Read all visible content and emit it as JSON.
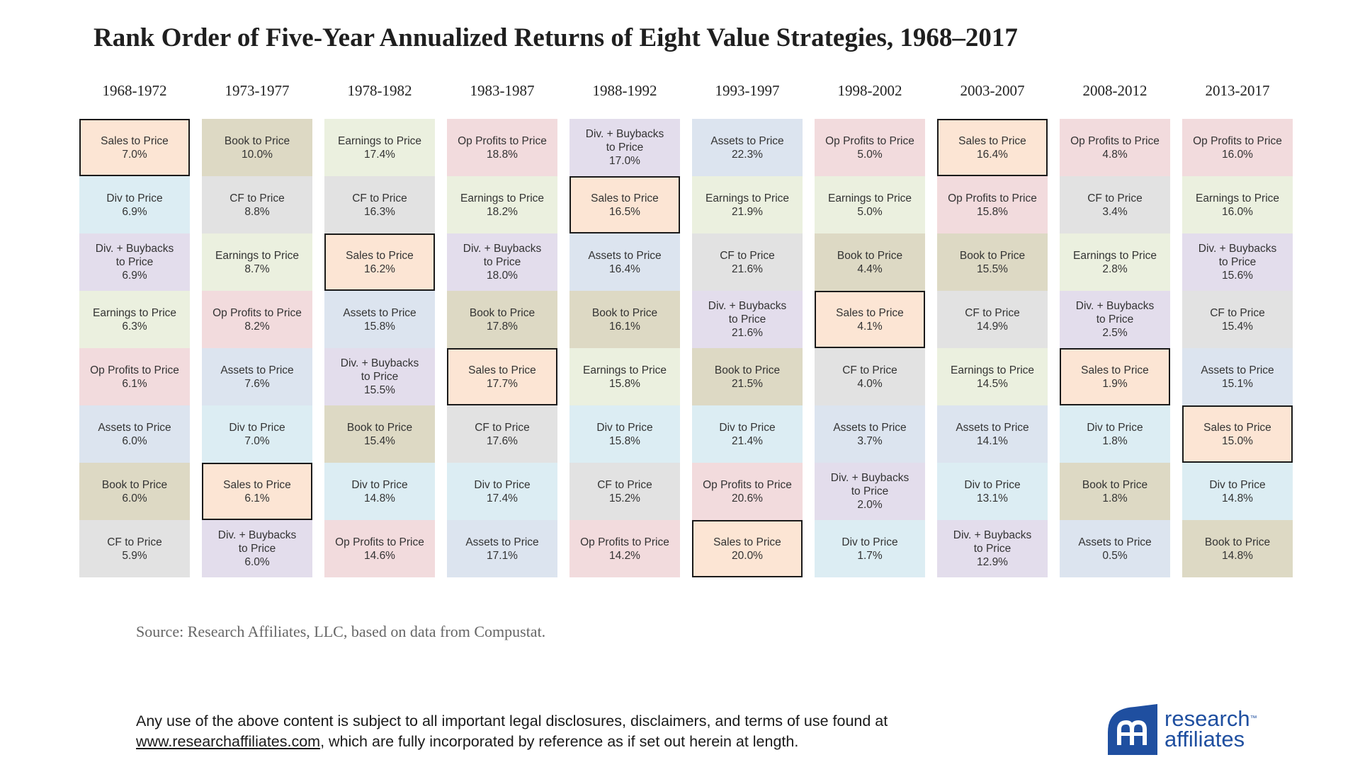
{
  "title": "Rank Order of Five-Year Annualized Returns of Eight Value Strategies, 1968–2017",
  "colors": {
    "Sales to Price": "#fce5d4",
    "Div to Price": "#dcedf3",
    "Div. + Buybacks to Price": "#e3ddec",
    "Earnings to Price": "#ebf0df",
    "Op Profits to Price": "#f2dbdd",
    "Assets to Price": "#dce4ef",
    "Book to Price": "#ddd9c4",
    "CF to Price": "#e2e2e2"
  },
  "chart_data": {
    "type": "table",
    "title": "Rank Order of Five-Year Annualized Returns of Eight Value Strategies, 1968–2017",
    "highlight_strategy": "Sales to Price",
    "periods": [
      {
        "period": "1968-1972",
        "ranks": [
          {
            "lines": [
              "Sales to Price"
            ],
            "value": "7.0%",
            "strategy": "Sales to Price"
          },
          {
            "lines": [
              "Div to Price"
            ],
            "value": "6.9%",
            "strategy": "Div to Price"
          },
          {
            "lines": [
              "Div. + Buybacks",
              "to Price"
            ],
            "value": "6.9%",
            "strategy": "Div. + Buybacks to Price"
          },
          {
            "lines": [
              "Earnings to Price"
            ],
            "value": "6.3%",
            "strategy": "Earnings to Price"
          },
          {
            "lines": [
              "Op Profits to Price"
            ],
            "value": "6.1%",
            "strategy": "Op Profits to Price"
          },
          {
            "lines": [
              "Assets to Price"
            ],
            "value": "6.0%",
            "strategy": "Assets to Price"
          },
          {
            "lines": [
              "Book to Price"
            ],
            "value": "6.0%",
            "strategy": "Book to Price"
          },
          {
            "lines": [
              "CF to Price"
            ],
            "value": "5.9%",
            "strategy": "CF to Price"
          }
        ]
      },
      {
        "period": "1973-1977",
        "ranks": [
          {
            "lines": [
              "Book to Price"
            ],
            "value": "10.0%",
            "strategy": "Book to Price"
          },
          {
            "lines": [
              "CF to Price"
            ],
            "value": "8.8%",
            "strategy": "CF to Price"
          },
          {
            "lines": [
              "Earnings to Price"
            ],
            "value": "8.7%",
            "strategy": "Earnings to Price"
          },
          {
            "lines": [
              "Op Profits to Price"
            ],
            "value": "8.2%",
            "strategy": "Op Profits to Price"
          },
          {
            "lines": [
              "Assets to Price"
            ],
            "value": "7.6%",
            "strategy": "Assets to Price"
          },
          {
            "lines": [
              "Div to Price"
            ],
            "value": "7.0%",
            "strategy": "Div to Price"
          },
          {
            "lines": [
              "Sales to Price"
            ],
            "value": "6.1%",
            "strategy": "Sales to Price"
          },
          {
            "lines": [
              "Div. + Buybacks",
              "to Price"
            ],
            "value": "6.0%",
            "strategy": "Div. + Buybacks to Price"
          }
        ]
      },
      {
        "period": "1978-1982",
        "ranks": [
          {
            "lines": [
              "Earnings to Price"
            ],
            "value": "17.4%",
            "strategy": "Earnings to Price"
          },
          {
            "lines": [
              "CF to Price"
            ],
            "value": "16.3%",
            "strategy": "CF to Price"
          },
          {
            "lines": [
              "Sales to Price"
            ],
            "value": "16.2%",
            "strategy": "Sales to Price"
          },
          {
            "lines": [
              "Assets to Price"
            ],
            "value": "15.8%",
            "strategy": "Assets to Price"
          },
          {
            "lines": [
              "Div. + Buybacks",
              "to Price"
            ],
            "value": "15.5%",
            "strategy": "Div. + Buybacks to Price"
          },
          {
            "lines": [
              "Book to Price"
            ],
            "value": "15.4%",
            "strategy": "Book to Price"
          },
          {
            "lines": [
              "Div to Price"
            ],
            "value": "14.8%",
            "strategy": "Div to Price"
          },
          {
            "lines": [
              "Op Profits to Price"
            ],
            "value": "14.6%",
            "strategy": "Op Profits to Price"
          }
        ]
      },
      {
        "period": "1983-1987",
        "ranks": [
          {
            "lines": [
              "Op Profits to Price"
            ],
            "value": "18.8%",
            "strategy": "Op Profits to Price"
          },
          {
            "lines": [
              "Earnings to Price"
            ],
            "value": "18.2%",
            "strategy": "Earnings to Price"
          },
          {
            "lines": [
              "Div. + Buybacks",
              "to Price"
            ],
            "value": "18.0%",
            "strategy": "Div. + Buybacks to Price"
          },
          {
            "lines": [
              "Book to Price"
            ],
            "value": "17.8%",
            "strategy": "Book to Price"
          },
          {
            "lines": [
              "Sales to Price"
            ],
            "value": "17.7%",
            "strategy": "Sales to Price"
          },
          {
            "lines": [
              "CF to Price"
            ],
            "value": "17.6%",
            "strategy": "CF to Price"
          },
          {
            "lines": [
              "Div to Price"
            ],
            "value": "17.4%",
            "strategy": "Div to Price"
          },
          {
            "lines": [
              "Assets to Price"
            ],
            "value": "17.1%",
            "strategy": "Assets to Price"
          }
        ]
      },
      {
        "period": "1988-1992",
        "ranks": [
          {
            "lines": [
              "Div. + Buybacks",
              "to Price"
            ],
            "value": "17.0%",
            "strategy": "Div. + Buybacks to Price"
          },
          {
            "lines": [
              "Sales to Price"
            ],
            "value": "16.5%",
            "strategy": "Sales to Price"
          },
          {
            "lines": [
              "Assets to Price"
            ],
            "value": "16.4%",
            "strategy": "Assets to Price"
          },
          {
            "lines": [
              "Book to Price"
            ],
            "value": "16.1%",
            "strategy": "Book to Price"
          },
          {
            "lines": [
              "Earnings to Price"
            ],
            "value": "15.8%",
            "strategy": "Earnings to Price"
          },
          {
            "lines": [
              "Div to Price"
            ],
            "value": "15.8%",
            "strategy": "Div to Price"
          },
          {
            "lines": [
              "CF to Price"
            ],
            "value": "15.2%",
            "strategy": "CF to Price"
          },
          {
            "lines": [
              "Op Profits to Price"
            ],
            "value": "14.2%",
            "strategy": "Op Profits to Price"
          }
        ]
      },
      {
        "period": "1993-1997",
        "ranks": [
          {
            "lines": [
              "Assets to Price"
            ],
            "value": "22.3%",
            "strategy": "Assets to Price"
          },
          {
            "lines": [
              "Earnings to Price"
            ],
            "value": "21.9%",
            "strategy": "Earnings to Price"
          },
          {
            "lines": [
              "CF to Price"
            ],
            "value": "21.6%",
            "strategy": "CF to Price"
          },
          {
            "lines": [
              "Div. + Buybacks",
              "to Price"
            ],
            "value": "21.6%",
            "strategy": "Div. + Buybacks to Price"
          },
          {
            "lines": [
              "Book to Price"
            ],
            "value": "21.5%",
            "strategy": "Book to Price"
          },
          {
            "lines": [
              "Div to Price"
            ],
            "value": "21.4%",
            "strategy": "Div to Price"
          },
          {
            "lines": [
              "Op Profits to Price"
            ],
            "value": "20.6%",
            "strategy": "Op Profits to Price"
          },
          {
            "lines": [
              "Sales to Price"
            ],
            "value": "20.0%",
            "strategy": "Sales to Price"
          }
        ]
      },
      {
        "period": "1998-2002",
        "ranks": [
          {
            "lines": [
              "Op Profits to Price"
            ],
            "value": "5.0%",
            "strategy": "Op Profits to Price"
          },
          {
            "lines": [
              "Earnings to Price"
            ],
            "value": "5.0%",
            "strategy": "Earnings to Price"
          },
          {
            "lines": [
              "Book to Price"
            ],
            "value": "4.4%",
            "strategy": "Book to Price"
          },
          {
            "lines": [
              "Sales to Price"
            ],
            "value": "4.1%",
            "strategy": "Sales to Price"
          },
          {
            "lines": [
              "CF to Price"
            ],
            "value": "4.0%",
            "strategy": "CF to Price"
          },
          {
            "lines": [
              "Assets to Price"
            ],
            "value": "3.7%",
            "strategy": "Assets to Price"
          },
          {
            "lines": [
              "Div. + Buybacks",
              "to Price"
            ],
            "value": "2.0%",
            "strategy": "Div. + Buybacks to Price"
          },
          {
            "lines": [
              "Div to Price"
            ],
            "value": "1.7%",
            "strategy": "Div to Price"
          }
        ]
      },
      {
        "period": "2003-2007",
        "ranks": [
          {
            "lines": [
              "Sales to Price"
            ],
            "value": "16.4%",
            "strategy": "Sales to Price"
          },
          {
            "lines": [
              "Op Profits to Price"
            ],
            "value": "15.8%",
            "strategy": "Op Profits to Price"
          },
          {
            "lines": [
              "Book to Price"
            ],
            "value": "15.5%",
            "strategy": "Book to Price"
          },
          {
            "lines": [
              "CF to Price"
            ],
            "value": "14.9%",
            "strategy": "CF to Price"
          },
          {
            "lines": [
              "Earnings to Price"
            ],
            "value": "14.5%",
            "strategy": "Earnings to Price"
          },
          {
            "lines": [
              "Assets to Price"
            ],
            "value": "14.1%",
            "strategy": "Assets to Price"
          },
          {
            "lines": [
              "Div to Price"
            ],
            "value": "13.1%",
            "strategy": "Div to Price"
          },
          {
            "lines": [
              "Div. + Buybacks",
              "to Price"
            ],
            "value": "12.9%",
            "strategy": "Div. + Buybacks to Price"
          }
        ]
      },
      {
        "period": "2008-2012",
        "ranks": [
          {
            "lines": [
              "Op Profits to Price"
            ],
            "value": "4.8%",
            "strategy": "Op Profits to Price"
          },
          {
            "lines": [
              "CF to Price"
            ],
            "value": "3.4%",
            "strategy": "CF to Price"
          },
          {
            "lines": [
              "Earnings to Price"
            ],
            "value": "2.8%",
            "strategy": "Earnings to Price"
          },
          {
            "lines": [
              "Div. + Buybacks",
              "to Price"
            ],
            "value": "2.5%",
            "strategy": "Div. + Buybacks to Price"
          },
          {
            "lines": [
              "Sales to Price"
            ],
            "value": "1.9%",
            "strategy": "Sales to Price"
          },
          {
            "lines": [
              "Div to Price"
            ],
            "value": "1.8%",
            "strategy": "Div to Price"
          },
          {
            "lines": [
              "Book to Price"
            ],
            "value": "1.8%",
            "strategy": "Book to Price"
          },
          {
            "lines": [
              "Assets to Price"
            ],
            "value": "0.5%",
            "strategy": "Assets to Price"
          }
        ]
      },
      {
        "period": "2013-2017",
        "ranks": [
          {
            "lines": [
              "Op Profits to Price"
            ],
            "value": "16.0%",
            "strategy": "Op Profits to Price"
          },
          {
            "lines": [
              "Earnings to Price"
            ],
            "value": "16.0%",
            "strategy": "Earnings to Price"
          },
          {
            "lines": [
              "Div. + Buybacks",
              "to Price"
            ],
            "value": "15.6%",
            "strategy": "Div. + Buybacks to Price"
          },
          {
            "lines": [
              "CF to Price"
            ],
            "value": "15.4%",
            "strategy": "CF to Price"
          },
          {
            "lines": [
              "Assets to Price"
            ],
            "value": "15.1%",
            "strategy": "Assets to Price"
          },
          {
            "lines": [
              "Sales to Price"
            ],
            "value": "15.0%",
            "strategy": "Sales to Price"
          },
          {
            "lines": [
              "Div to Price"
            ],
            "value": "14.8%",
            "strategy": "Div to Price"
          },
          {
            "lines": [
              "Book to Price"
            ],
            "value": "14.8%",
            "strategy": "Book to Price"
          }
        ]
      }
    ]
  },
  "source": "Source: Research Affiliates, LLC, based on data from Compustat.",
  "disclaimer": {
    "text_before": "Any use of the above content is subject to all important legal disclosures, disclaimers, and terms of use found at",
    "link": "www.researchaffiliates.com",
    "text_after": ", which are fully incorporated by reference as if set out herein at length."
  },
  "logo": {
    "line1": "research",
    "line2": "affiliates",
    "tm": "™",
    "icon": "research-affiliates-logo-icon"
  }
}
